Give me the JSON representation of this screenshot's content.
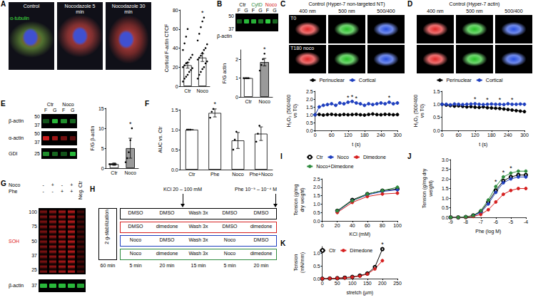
{
  "panel_letters": [
    "A",
    "B",
    "C",
    "D",
    "E",
    "F",
    "G",
    "H",
    "I",
    "J",
    "K"
  ],
  "images": [
    {
      "titles": [
        "Control",
        "Nocodazole 5 min",
        "Nocodazole 30 min"
      ],
      "stain": "α-tubulin"
    },
    {
      "title": "Control (Hyper-7 non-targeted NT)",
      "columns": [
        "400 nm",
        "500 nm",
        "500/400"
      ],
      "rows": [
        "T0",
        "T180 noco"
      ]
    },
    {
      "title": "Control (Hyper-7 actin)",
      "columns": [
        "400 nm",
        "500 nm",
        "500/400"
      ]
    }
  ],
  "blots": [
    {
      "lanes": [
        "Ctr",
        "CytD",
        "Noco"
      ],
      "lane_colors": [
        "#000000",
        "#2e8b3e",
        "#d62020"
      ],
      "sublanes": [
        "F",
        "G",
        "F",
        "G",
        "F",
        "G"
      ],
      "strips": [
        {
          "protein": "β-actin",
          "color": "#2ecc40",
          "mw": [
            50,
            37
          ]
        }
      ]
    },
    {
      "lanes": [
        "Ctr",
        "Noco"
      ],
      "lane_colors": [
        "#000000",
        "#000000"
      ],
      "sublanes": [
        "F",
        "G",
        "F",
        "G"
      ],
      "strips": [
        {
          "protein": "β-actin",
          "color": "#2ecc40",
          "mw": [
            50,
            37
          ]
        },
        {
          "protein": "α-actin",
          "color": "#e02020",
          "mw": [
            50,
            37
          ]
        },
        {
          "protein": "GDI",
          "color": "#2ecc40",
          "mw": [
            25
          ]
        }
      ]
    },
    {
      "rows": [
        {
          "label": "Noco",
          "signs": [
            "-",
            "+",
            "-",
            "+"
          ]
        },
        {
          "label": "Phe",
          "signs": [
            "-",
            "-",
            "+",
            "+"
          ]
        }
      ],
      "extra_lane": "Neg. Ctr",
      "strips": [
        {
          "protein": "SOH",
          "color": "#e02020",
          "mw": [
            100,
            75,
            50,
            37,
            25
          ]
        },
        {
          "protein": "β-actin",
          "color": "#2ecc40",
          "mw": [
            37
          ]
        }
      ]
    }
  ],
  "diagram": {
    "top_labels": [
      "KCl 20 – 100 mM",
      "Phe 10⁻⁹ – 10⁻⁴ M"
    ],
    "side_label": "2 g-stabilization",
    "rows": [
      {
        "cells": [
          "DMSO",
          "DMSO",
          "Wash 3x",
          "DMSO",
          "DMSO"
        ],
        "color": "#000000"
      },
      {
        "cells": [
          "DMSO",
          "dimedone",
          "Wash 3x",
          "DMSO",
          "dimedone"
        ],
        "color": "#d62020"
      },
      {
        "cells": [
          "Noco",
          "DMSO",
          "Wash 3x",
          "Noco",
          "DMSO"
        ],
        "color": "#1f3fbf"
      },
      {
        "cells": [
          "Noco",
          "dimedone",
          "Wash 3x",
          "Noco",
          "dimedone"
        ],
        "color": "#2e8b3e"
      }
    ],
    "times": [
      "60 min",
      "5 min",
      "20 min",
      "15 min",
      "5 min",
      "20 min"
    ]
  },
  "chart_data": [
    {
      "type": "bar",
      "y_label": "Cortical F-actin CTCF",
      "categories": [
        "Ctr",
        "Noco"
      ],
      "values": [
        22,
        30
      ],
      "errors": [
        3,
        4
      ],
      "points": [
        [
          5,
          8,
          10,
          12,
          15,
          17,
          19,
          20,
          22,
          24,
          25,
          28,
          30,
          33,
          38,
          45,
          52,
          60
        ],
        [
          8,
          12,
          15,
          18,
          20,
          24,
          26,
          28,
          30,
          32,
          35,
          38,
          40,
          44,
          48,
          55,
          62,
          68,
          72
        ]
      ],
      "colors": [
        "#ffffff",
        "#ffffff"
      ],
      "ylim": [
        0,
        80
      ],
      "yticks": [
        0,
        20,
        40,
        60,
        80
      ],
      "grid": false,
      "annotations": [
        {
          "category": "Noco",
          "text": "*"
        }
      ]
    },
    {
      "type": "bar",
      "y_label": "F/G actin",
      "categories": [
        "Ctr",
        "Noco"
      ],
      "values": [
        1,
        1.85
      ],
      "errors": [
        0,
        0.2
      ],
      "points": [
        [
          1,
          1,
          1,
          1
        ],
        [
          1.4,
          1.7,
          2.0,
          2.3
        ]
      ],
      "colors": [
        "#ffffff",
        "#9a9a9a"
      ],
      "ylim": [
        0,
        2.5
      ],
      "yticks": [
        0,
        1,
        2
      ],
      "grid": false,
      "annotations": [
        {
          "category": "Noco",
          "text": "*"
        }
      ]
    },
    {
      "type": "line",
      "x_label": "t (s)",
      "y_label": "H₂O₂ (500/400 vs T0)",
      "x": [
        0,
        15,
        30,
        45,
        60,
        75,
        90,
        105,
        120,
        135,
        150,
        165,
        180,
        195,
        210,
        225,
        240,
        255,
        270,
        285,
        300
      ],
      "series": [
        {
          "name": "Perinuclear",
          "color": "#000000",
          "marker": "circle",
          "values": [
            1,
            1.02,
            0.98,
            1.01,
            1.03,
            1,
            0.99,
            1.02,
            1,
            1.01,
            1.03,
            1,
            0.98,
            1.02,
            1.05,
            1.01,
            1,
            1.03,
            1.02,
            1,
            1.01
          ]
        },
        {
          "name": "Cortical",
          "color": "#1f3fbf",
          "marker": "circle",
          "values": [
            1,
            1.5,
            1.6,
            1.65,
            1.7,
            1.6,
            1.75,
            1.7,
            1.8,
            1.85,
            1.75,
            1.7,
            1.6,
            1.7,
            1.65,
            1.7,
            1.75,
            1.7,
            1.8,
            1.7,
            1.75
          ]
        }
      ],
      "xlim": [
        0,
        300
      ],
      "xticks": [
        0,
        60,
        120,
        180,
        240,
        300
      ],
      "ylim": [
        0,
        2.5
      ],
      "yticks": [
        {
          "value": 0,
          "label": "0.0"
        },
        {
          "value": 0.5,
          "label": "0.5"
        },
        {
          "value": 1,
          "label": "1.0"
        },
        {
          "value": 1.5,
          "label": "1.5"
        },
        {
          "value": 2,
          "label": "2.0"
        },
        {
          "value": 2.5,
          "label": "2.5"
        }
      ],
      "grid": false,
      "legend": "top",
      "annotations": [
        {
          "x": 120,
          "text": "*"
        },
        {
          "x": 135,
          "text": "*"
        },
        {
          "x": 150,
          "text": "*"
        },
        {
          "x": 270,
          "text": "*"
        }
      ]
    },
    {
      "type": "line",
      "x_label": "t (s)",
      "y_label": "H₂O₂ (500/400 vs T0)",
      "x": [
        0,
        15,
        30,
        45,
        60,
        75,
        90,
        105,
        120,
        135,
        150,
        165,
        180,
        195,
        210,
        225,
        240,
        255,
        270,
        285,
        300
      ],
      "series": [
        {
          "name": "Perinuclear",
          "color": "#000000",
          "marker": "circle",
          "values": [
            1,
            0.97,
            0.95,
            0.93,
            0.94,
            0.92,
            0.9,
            0.91,
            0.89,
            0.88,
            0.9,
            0.87,
            0.86,
            0.85,
            0.84,
            0.82,
            0.8,
            0.78,
            0.76,
            0.74,
            0.72
          ]
        },
        {
          "name": "Cortical",
          "color": "#1f3fbf",
          "marker": "circle",
          "values": [
            1,
            1,
            0.98,
            1.01,
            1,
            0.99,
            1,
            1.01,
            1.02,
            1,
            0.99,
            1,
            1.01,
            1,
            1,
            0.99,
            1.02,
            1,
            1,
            1.01,
            1
          ]
        }
      ],
      "xlim": [
        0,
        300
      ],
      "xticks": [
        0,
        60,
        120,
        180,
        240,
        300
      ],
      "ylim": [
        0,
        1.5
      ],
      "yticks": [
        {
          "value": 0,
          "label": "0.0"
        },
        {
          "value": 0.5,
          "label": "0.5"
        },
        {
          "value": 1,
          "label": "1.0"
        },
        {
          "value": 1.5,
          "label": "1.5"
        }
      ],
      "grid": false,
      "legend": "top",
      "annotations": [
        {
          "x": 120,
          "text": "*"
        },
        {
          "x": 165,
          "text": "*"
        },
        {
          "x": 210,
          "text": "*"
        },
        {
          "x": 255,
          "text": "*"
        }
      ]
    },
    {
      "type": "bar",
      "y_label": "F/G β-actin",
      "categories": [
        "Ctr",
        "Noco"
      ],
      "values": [
        1,
        5
      ],
      "errors": [
        0.3,
        2.5
      ],
      "points": [
        [
          1,
          1,
          1,
          1,
          1
        ],
        [
          1.5,
          2.5,
          4,
          7,
          10
        ]
      ],
      "colors": [
        "#ffffff",
        "#9a9a9a"
      ],
      "ylim": [
        0,
        15
      ],
      "yticks": [
        0,
        5,
        10,
        15
      ],
      "grid": false,
      "annotations": [
        {
          "category": "Noco",
          "text": "*"
        }
      ]
    },
    {
      "type": "bar",
      "y_label": "AUC vs. Ctr",
      "categories": [
        "Ctr",
        "Phe",
        "Noco",
        "Phe+Noco"
      ],
      "values": [
        1,
        1.42,
        0.73,
        0.9
      ],
      "errors": [
        0,
        0.1,
        0.2,
        0.17
      ],
      "points": [
        [
          1,
          1,
          1
        ],
        [
          1.3,
          1.45,
          1.52
        ],
        [
          0.5,
          0.75,
          0.95
        ],
        [
          0.7,
          0.9,
          1.1
        ]
      ],
      "colors": [
        "#ffffff",
        "#ffffff",
        "#ffffff",
        "#ffffff"
      ],
      "ylim": [
        0,
        1.5
      ],
      "yticks": [
        {
          "value": 0,
          "label": "0.0"
        },
        {
          "value": 0.5,
          "label": "0.5"
        },
        {
          "value": 1,
          "label": "1.0"
        },
        {
          "value": 1.5,
          "label": "1.5"
        }
      ],
      "grid": false,
      "annotations": [
        {
          "category": "Phe",
          "text": "*"
        }
      ]
    },
    {
      "type": "line",
      "x_label": "KCl (mM)",
      "y_label": "Tension (g/mg dry weight)",
      "x": [
        20,
        40,
        60,
        80,
        100
      ],
      "series": [
        {
          "name": "Ctr",
          "color": "#000000",
          "marker": "emptyCircle",
          "values": [
            0.6,
            1.25,
            1.6,
            1.8,
            1.9
          ]
        },
        {
          "name": "Noco",
          "color": "#1f3fbf",
          "marker": "circle",
          "values": [
            0.55,
            1.2,
            1.55,
            1.75,
            1.85
          ]
        },
        {
          "name": "Dimedone",
          "color": "#d62020",
          "marker": "circle",
          "values": [
            0.5,
            1.1,
            1.45,
            1.6,
            1.65
          ]
        },
        {
          "name": "Noco+Dimedone",
          "color": "#2e8b3e",
          "marker": "circle",
          "values": [
            0.6,
            1.2,
            1.6,
            1.8,
            2.0
          ]
        }
      ],
      "xlim": [
        0,
        100
      ],
      "xticks": [
        0,
        20,
        40,
        60,
        80,
        100
      ],
      "ylim": [
        0,
        2.5
      ],
      "yticks": [
        {
          "value": 0,
          "label": "0.0"
        },
        {
          "value": 0.5,
          "label": "0.5"
        },
        {
          "value": 1,
          "label": "1.0"
        },
        {
          "value": 1.5,
          "label": "1.5"
        },
        {
          "value": 2,
          "label": "2.0"
        },
        {
          "value": 2.5,
          "label": "2.5"
        }
      ],
      "grid": false,
      "legend": "top"
    },
    {
      "type": "line",
      "x_label": "Phe (log M)",
      "y_label": "Tension (g/mg dry weight)",
      "x": [
        -9,
        -8.5,
        -8,
        -7.5,
        -7,
        -6.5,
        -6,
        -5.5,
        -5,
        -4.5,
        -4
      ],
      "series": [
        {
          "name": "Ctr",
          "color": "#000000",
          "marker": "emptyCircle",
          "values": [
            0,
            0,
            0.02,
            0.1,
            0.3,
            0.8,
            1.4,
            1.9,
            2.1,
            2.2,
            2.2
          ]
        },
        {
          "name": "Noco",
          "color": "#1f3fbf",
          "marker": "circle",
          "values": [
            0,
            0,
            0.02,
            0.08,
            0.25,
            0.7,
            1.3,
            1.8,
            2.0,
            2.1,
            2.1
          ]
        },
        {
          "name": "Dimedone",
          "color": "#d62020",
          "marker": "circle",
          "values": [
            0,
            0,
            0.01,
            0.05,
            0.15,
            0.4,
            0.8,
            1.2,
            1.4,
            1.5,
            1.5
          ]
        },
        {
          "name": "Noco+Dimedone",
          "color": "#2e8b3e",
          "marker": "circle",
          "values": [
            0,
            0,
            0.03,
            0.1,
            0.35,
            0.9,
            1.6,
            2.1,
            2.3,
            2.4,
            2.4
          ]
        }
      ],
      "xlim": [
        -9,
        -4
      ],
      "xticks": [
        -9,
        -8,
        -7,
        -6,
        -5,
        -4
      ],
      "ylim": [
        0,
        3
      ],
      "yticks": [
        {
          "value": 0,
          "label": "0.0"
        },
        {
          "value": 0.5,
          "label": "0.5"
        },
        {
          "value": 1,
          "label": "1.0"
        },
        {
          "value": 1.5,
          "label": "1.5"
        },
        {
          "value": 2,
          "label": "2.0"
        },
        {
          "value": 2.5,
          "label": "2.5"
        },
        {
          "value": 3,
          "label": "3.0"
        }
      ],
      "grid": false,
      "annotations": [
        {
          "x": -6,
          "text": "*"
        },
        {
          "x": -5.5,
          "text": "*"
        },
        {
          "x": -5,
          "text": "*"
        }
      ]
    },
    {
      "type": "line",
      "x_label": "stretch (µm)",
      "y_label": "Tension (mN/mm)",
      "x": [
        0,
        25,
        50,
        75,
        100,
        125,
        150,
        175,
        200
      ],
      "series": [
        {
          "name": "Ctr",
          "color": "#000000",
          "marker": "emptyCircle",
          "values": [
            0,
            0.01,
            0.02,
            0.04,
            0.07,
            0.12,
            0.2,
            0.45,
            1.15
          ]
        },
        {
          "name": "Dimedone",
          "color": "#d62020",
          "marker": "circle",
          "values": [
            0,
            0.01,
            0.02,
            0.03,
            0.06,
            0.1,
            0.18,
            0.38,
            0.7
          ]
        }
      ],
      "xlim": [
        0,
        250
      ],
      "xticks": [
        0,
        50,
        100,
        150,
        200,
        250
      ],
      "ylim": [
        0,
        1.25
      ],
      "yticks": [
        {
          "value": 0,
          "label": "0.0"
        },
        {
          "value": 0.5,
          "label": "0.5"
        },
        {
          "value": 1,
          "label": "1.0"
        }
      ],
      "grid": false,
      "legend": "top-left",
      "annotations": [
        {
          "x": 200,
          "text": "*"
        }
      ]
    }
  ]
}
